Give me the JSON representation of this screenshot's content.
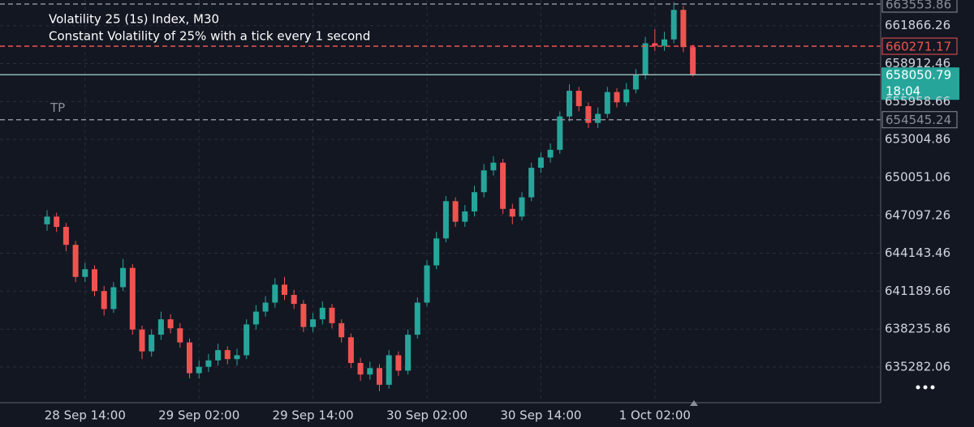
{
  "chart_data": {
    "type": "candlestick",
    "title": "Volatility 25 (1s) Index, M30",
    "subtitle": "Constant Volatility of 25% with a tick every 1 second",
    "categories": [
      null,
      null,
      null,
      null,
      "28 Sep 14:00",
      null,
      null,
      null,
      null,
      null,
      null,
      null,
      null,
      null,
      null,
      null,
      "29 Sep 02:00",
      null,
      null,
      null,
      null,
      null,
      null,
      null,
      null,
      null,
      null,
      null,
      "29 Sep 14:00",
      null,
      null,
      null,
      null,
      null,
      null,
      null,
      null,
      null,
      null,
      null,
      "30 Sep 02:00",
      null,
      null,
      null,
      null,
      null,
      null,
      null,
      null,
      null,
      null,
      null,
      "30 Sep 14:00",
      null,
      null,
      null,
      null,
      null,
      null,
      null,
      null,
      null,
      null,
      null,
      "1 Oct 02:00",
      null,
      null,
      null,
      null
    ],
    "open": [
      646400,
      647000,
      646200,
      644800,
      642300,
      642900,
      641200,
      639800,
      641500,
      643000,
      638200,
      636500,
      637800,
      639000,
      638300,
      637200,
      634800,
      635300,
      635800,
      636600,
      635900,
      636200,
      638600,
      639600,
      640300,
      641700,
      640900,
      640200,
      638400,
      639000,
      639900,
      638700,
      637600,
      635600,
      634700,
      635200,
      633900,
      636200,
      635000,
      637800,
      640300,
      643200,
      645300,
      648200,
      646600,
      647400,
      648900,
      650600,
      651200,
      647600,
      647000,
      648500,
      650800,
      651600,
      652200,
      654800,
      656800,
      655600,
      654300,
      655000,
      656700,
      655900,
      656900,
      658000,
      660500,
      660300,
      660800,
      663100,
      660200
    ],
    "high": [
      647500,
      647300,
      646500,
      645100,
      643400,
      643200,
      641600,
      641900,
      643700,
      643300,
      638500,
      638200,
      639600,
      639400,
      638700,
      637500,
      635800,
      636300,
      637100,
      636900,
      636700,
      639000,
      640100,
      640800,
      642200,
      642300,
      641300,
      640500,
      639500,
      640400,
      640200,
      639000,
      637900,
      636000,
      635700,
      635500,
      636600,
      636500,
      638200,
      640700,
      643600,
      645800,
      648600,
      648500,
      647900,
      649400,
      651100,
      651700,
      651500,
      648000,
      648900,
      651200,
      652000,
      652700,
      655200,
      657300,
      657100,
      655900,
      655500,
      657100,
      657000,
      657400,
      658500,
      661000,
      661600,
      661400,
      663700,
      663400,
      660400
    ],
    "low": [
      645900,
      645800,
      644300,
      641900,
      641900,
      640800,
      639300,
      639500,
      641200,
      637800,
      635900,
      636100,
      637400,
      637900,
      636800,
      634400,
      634400,
      634900,
      635400,
      635500,
      635400,
      635900,
      638200,
      639200,
      639900,
      640500,
      639800,
      638000,
      638000,
      638600,
      638300,
      637200,
      635200,
      634200,
      634300,
      633400,
      633600,
      634600,
      634700,
      637500,
      640000,
      642900,
      645000,
      646200,
      646200,
      647000,
      648500,
      650200,
      647200,
      646400,
      646700,
      648200,
      650400,
      651200,
      651900,
      654400,
      655200,
      653900,
      653900,
      654700,
      655500,
      655600,
      656600,
      657700,
      659900,
      659900,
      660500,
      659800,
      657900
    ],
    "close": [
      647000,
      646200,
      644800,
      642300,
      642900,
      641200,
      639800,
      641500,
      643000,
      638200,
      636500,
      637800,
      639000,
      638300,
      637200,
      634800,
      635300,
      635800,
      636600,
      635900,
      636200,
      638600,
      639600,
      640300,
      641700,
      640900,
      640200,
      638400,
      639000,
      639900,
      638700,
      637600,
      635600,
      634700,
      635200,
      633900,
      636200,
      635000,
      637800,
      640300,
      643200,
      645300,
      648200,
      646600,
      647400,
      648900,
      650600,
      651200,
      647600,
      647000,
      648500,
      650800,
      651600,
      652200,
      654800,
      656800,
      655600,
      654300,
      655000,
      656700,
      655900,
      656900,
      658000,
      660500,
      660300,
      660800,
      663100,
      660200,
      658050.79
    ],
    "up_color": "#26a69a",
    "down_color": "#ef5350",
    "ylim": [
      632505,
      663869
    ],
    "yticks": [
      661866.26,
      658912.46,
      655958.66,
      653004.86,
      650051.06,
      647097.26,
      644143.46,
      641189.66,
      638235.86,
      635282.06
    ],
    "grid": true,
    "levels": [
      {
        "value": 663553.86,
        "color": "#8a8f98"
      },
      {
        "value": 660271.17,
        "color": "#ef5350"
      },
      {
        "label": "TP",
        "value": 654545.24,
        "color": "#8a8f98"
      }
    ],
    "last_price": {
      "value": 658050.79,
      "countdown": "18:04",
      "color": "#26a69a"
    }
  }
}
